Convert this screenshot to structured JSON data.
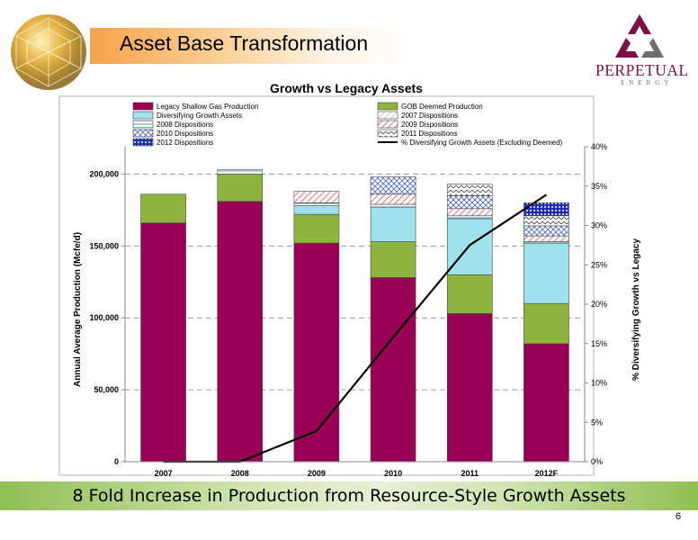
{
  "slide": {
    "title": "Asset Base Transformation",
    "footer_text": "8 Fold Increase in Production from Resource-Style Growth Assets",
    "page_number": "6"
  },
  "logo": {
    "word": "PERPETUAL",
    "sub": "ENERGY",
    "colors": {
      "dark": "#7a1048",
      "grey": "#6e6e6e"
    }
  },
  "chart_data": {
    "type": "bar",
    "title": "Growth vs Legacy Assets",
    "categories": [
      "2007",
      "2008",
      "2009",
      "2010",
      "2011",
      "2012F"
    ],
    "ylabel": "Annual Average Production (Mcfe/d)",
    "y2label": "% Diversifying Growth vs Legacy",
    "ylim": [
      0,
      230000
    ],
    "y2lim": [
      0,
      40
    ],
    "y_ticks": [
      0,
      50000,
      100000,
      150000,
      200000
    ],
    "y_tick_labels": [
      "0",
      "50,000",
      "100,000",
      "150,000",
      "200,000"
    ],
    "y2_ticks": [
      0,
      5,
      10,
      15,
      20,
      25,
      30,
      35,
      40
    ],
    "y2_tick_labels": [
      "0%",
      "5%",
      "10%",
      "15%",
      "20%",
      "25%",
      "30%",
      "35%",
      "40%"
    ],
    "grid": "dashed horizontal",
    "legend_position": "top",
    "stacked": true,
    "series": [
      {
        "name": "Legacy Shallow Gas Production",
        "color": "#990055",
        "pattern": "solid",
        "values": [
          166000,
          181000,
          152000,
          128000,
          103000,
          82000
        ]
      },
      {
        "name": "GOB Deemed Production",
        "color": "#8db43e",
        "pattern": "solid",
        "values": [
          20000,
          19000,
          20000,
          25000,
          27000,
          28000
        ]
      },
      {
        "name": "Diversifying Growth Assets",
        "color": "#9fe2ec",
        "pattern": "solid",
        "values": [
          0,
          0,
          6000,
          24000,
          39000,
          42000
        ]
      },
      {
        "name": "2007 Dispositions",
        "color": "#9a9a9a",
        "pattern": "light-diagonal",
        "values": [
          0,
          0,
          0,
          0,
          0,
          0
        ]
      },
      {
        "name": "2008 Dispositions",
        "color": "#6aaed0",
        "pattern": "horizontal",
        "values": [
          0,
          3000,
          2000,
          2000,
          2000,
          1000
        ]
      },
      {
        "name": "2009 Dispositions",
        "color": "#e05050",
        "pattern": "diagonal",
        "values": [
          0,
          0,
          8000,
          7000,
          5000,
          4000
        ]
      },
      {
        "name": "2010 Dispositions",
        "color": "#4f6bd0",
        "pattern": "diagonal-cross",
        "values": [
          0,
          0,
          0,
          12000,
          9000,
          7000
        ]
      },
      {
        "name": "2011 Dispositions",
        "color": "#555555",
        "pattern": "zigzag",
        "values": [
          0,
          0,
          0,
          0,
          8000,
          7000
        ]
      },
      {
        "name": "2012 Dispositions",
        "color": "#1f2fb0",
        "pattern": "dots",
        "values": [
          0,
          0,
          0,
          0,
          0,
          9000
        ]
      }
    ],
    "line_series": {
      "name": "% Diversifying Growth Assets (Excluding Deemed)",
      "color": "#000000",
      "axis": "secondary",
      "values": [
        0,
        0,
        3.9,
        15.8,
        27.5,
        33.9
      ]
    }
  }
}
